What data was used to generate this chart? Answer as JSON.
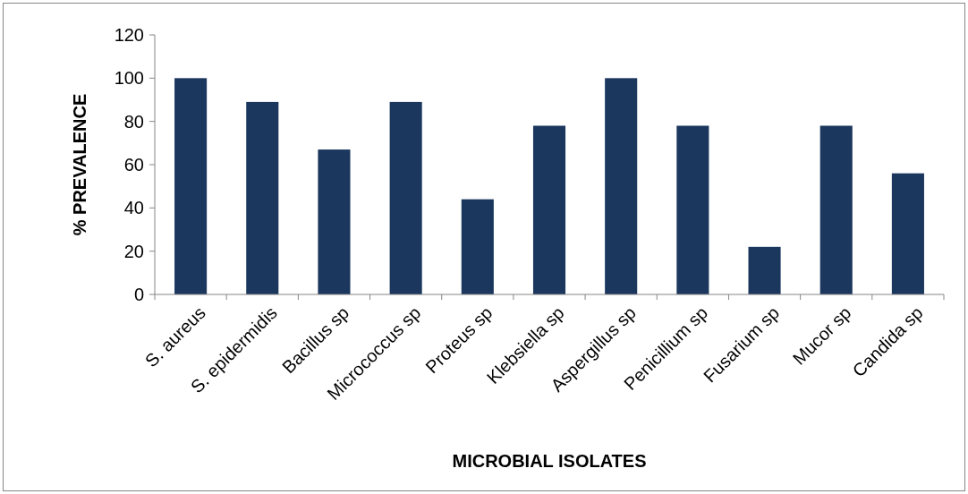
{
  "chart_data": {
    "type": "bar",
    "xlabel": "MICROBIAL ISOLATES",
    "ylabel": "% PREVALENCE",
    "categories": [
      "S. aureus",
      "S. epidermidis",
      "Bacillus sp",
      "Micrococcus sp",
      "Proteus sp",
      "Klebsiella sp",
      "Aspergillus sp",
      "Penicillium sp",
      "Fusarium sp",
      "Mucor sp",
      "Candida sp"
    ],
    "values": [
      100,
      89,
      67,
      89,
      44,
      78,
      100,
      78,
      22,
      78,
      56
    ],
    "color": "#1b375e",
    "ylim": [
      0,
      120
    ],
    "yticks": [
      0,
      20,
      40,
      60,
      80,
      100,
      120
    ],
    "grid": false
  }
}
